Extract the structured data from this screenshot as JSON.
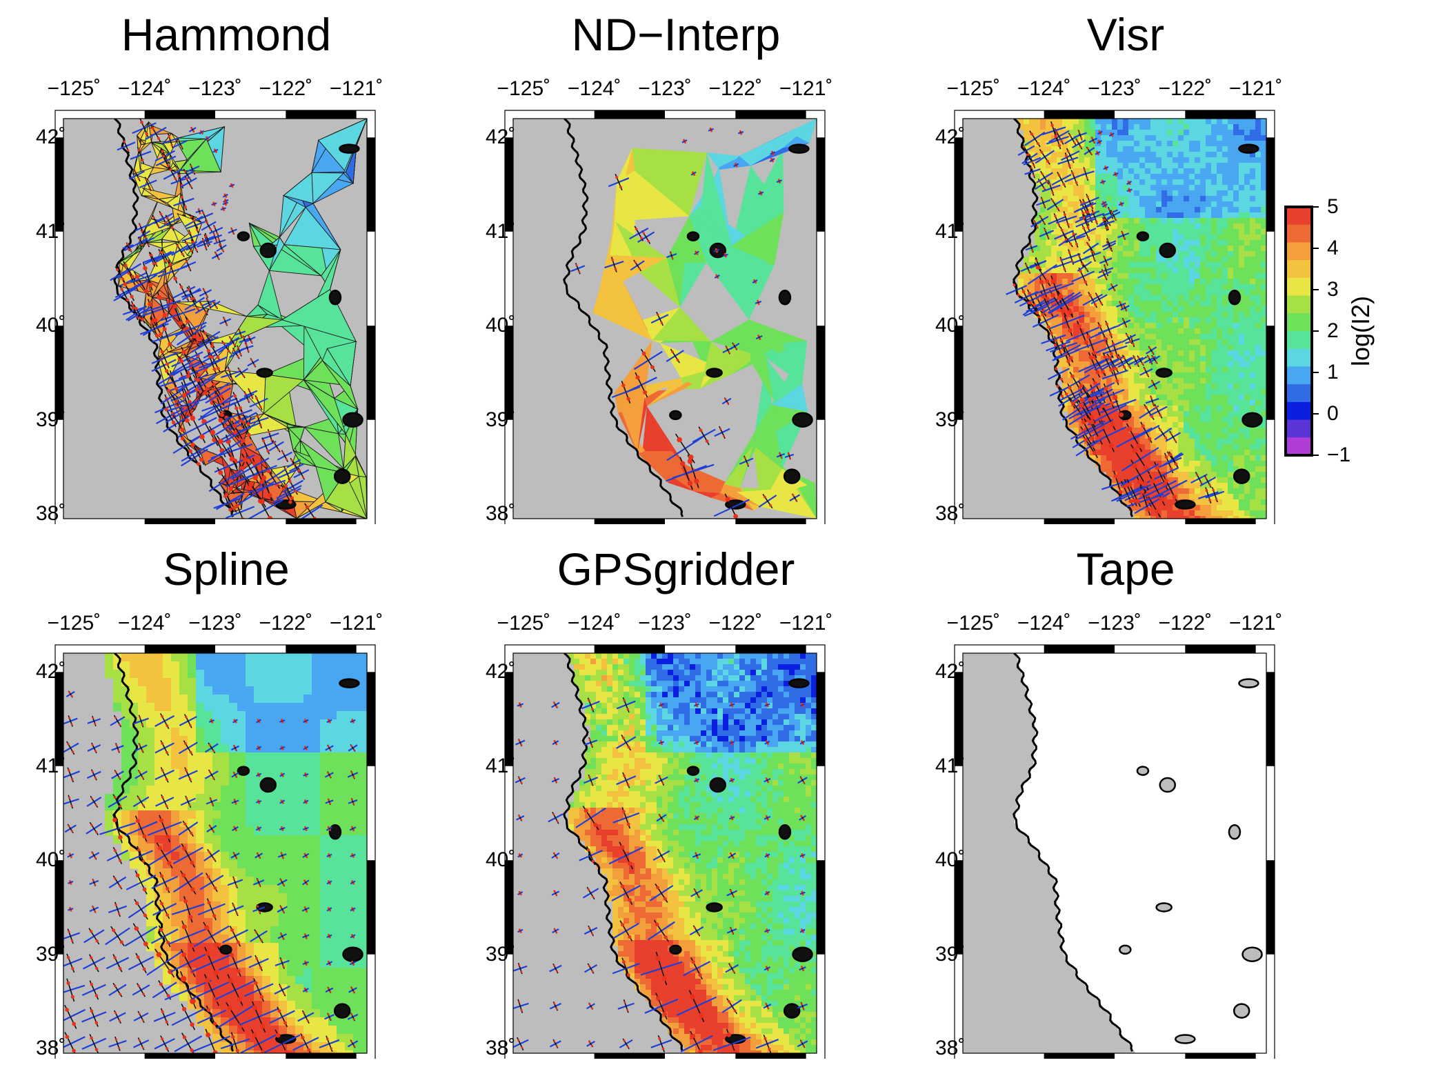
{
  "figure": {
    "x_ticks": [
      "−125˚",
      "−124˚",
      "−123˚",
      "−122˚",
      "−121˚"
    ],
    "y_ticks": [
      "42˚",
      "41˚",
      "40˚",
      "39˚",
      "38˚"
    ],
    "lon_range": [
      -125.15,
      -120.85
    ],
    "lat_range": [
      37.95,
      42.2
    ],
    "land_color": "#bdbdbd",
    "strain_arrow_color_compression": "#e8321c",
    "strain_arrow_color_extension": "#1f3fd6"
  },
  "panels": [
    {
      "title": "Hammond",
      "style": "triangulated",
      "arrows": "dense-coastal",
      "seed": 3
    },
    {
      "title": "ND−Interp",
      "style": "triangulated-smooth",
      "arrows": "sparse",
      "seed": 7
    },
    {
      "title": "Visr",
      "style": "pixelated",
      "arrows": "dense-coastal",
      "seed": 11
    },
    {
      "title": "Spline",
      "style": "smooth",
      "arrows": "grid-dense",
      "seed": 17
    },
    {
      "title": "GPSgridder",
      "style": "pixelated",
      "arrows": "grid-sparse",
      "seed": 23
    },
    {
      "title": "Tape",
      "style": "blank",
      "arrows": "none",
      "seed": 29
    }
  ],
  "colorbar": {
    "title": "log(I2)",
    "ticks": [
      "5",
      "4",
      "3",
      "2",
      "1",
      "0",
      "−1"
    ],
    "colors": [
      "#b13dd8",
      "#5a34d6",
      "#0a1fe0",
      "#2f6ce6",
      "#49a6f0",
      "#5cd6e0",
      "#57e39a",
      "#6fe05a",
      "#a6e045",
      "#e8e645",
      "#f3c33f",
      "#f3a03c",
      "#ee6a35",
      "#e8402c"
    ]
  }
}
